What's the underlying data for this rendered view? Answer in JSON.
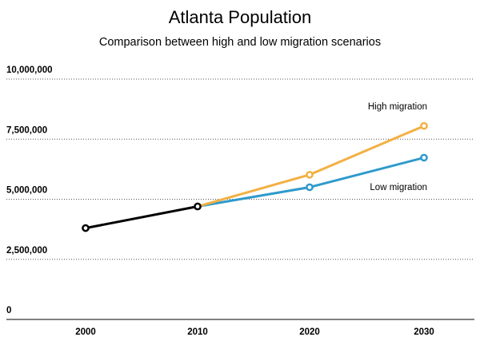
{
  "chart_data": {
    "type": "line",
    "title": "Atlanta Population",
    "subtitle": "Comparison between high and low migration scenarios",
    "xlabel": "",
    "ylabel": "",
    "categories": [
      "2000",
      "2010",
      "2020",
      "2030"
    ],
    "ylim": [
      0,
      10000000
    ],
    "yticks": [
      0,
      2500000,
      5000000,
      7500000,
      10000000
    ],
    "ytick_labels": [
      "0",
      "2,500,000",
      "5,000,000",
      "7,500,000",
      "10,000,000"
    ],
    "grid": true,
    "series": [
      {
        "id": "historical",
        "x": [
          "2000",
          "2010"
        ],
        "values": [
          3800000,
          4700000
        ],
        "color": "#000000"
      },
      {
        "id": "low",
        "name": "Low migration",
        "x": [
          "2010",
          "2020",
          "2030"
        ],
        "values": [
          4700000,
          5500000,
          6730000
        ],
        "color": "#2e9acb"
      },
      {
        "id": "high",
        "name": "High migration",
        "x": [
          "2010",
          "2020",
          "2030"
        ],
        "values": [
          4700000,
          6020000,
          8050000
        ],
        "color": "#f2b043"
      }
    ]
  }
}
